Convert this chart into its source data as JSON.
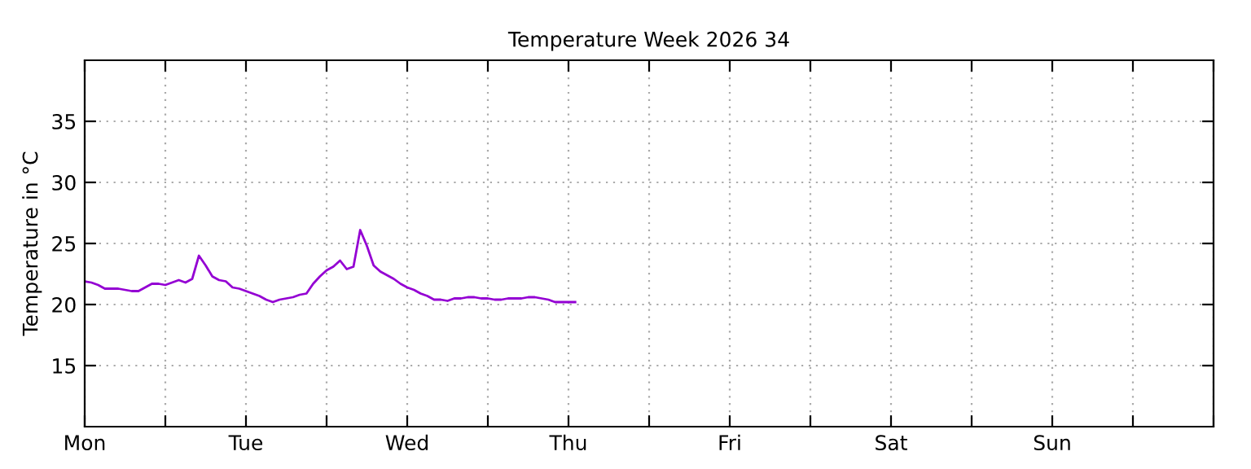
{
  "chart_data": {
    "type": "line",
    "title": "Temperature Week 2026 34",
    "ylabel": "Temperature in °C",
    "categories": [
      "Mon",
      null,
      null,
      null,
      null,
      null,
      null,
      null,
      null,
      null,
      null,
      null,
      null,
      null,
      null,
      null,
      null,
      null,
      null,
      null,
      null,
      null,
      null,
      null,
      "Tue",
      null,
      null,
      null,
      null,
      null,
      null,
      null,
      null,
      null,
      null,
      null,
      null,
      null,
      null,
      null,
      null,
      null,
      null,
      null,
      null,
      null,
      null,
      null,
      "Wed",
      null,
      null,
      null,
      null,
      null,
      null,
      null,
      null,
      null,
      null,
      null,
      null,
      null,
      null,
      null,
      null,
      null,
      null,
      null,
      null,
      null,
      null,
      null,
      "Thu",
      null,
      null,
      null,
      null,
      null,
      null,
      null,
      null,
      null,
      null,
      null,
      null,
      null,
      null,
      null,
      null,
      null,
      null,
      null,
      null,
      null,
      null,
      null,
      "Fri",
      null,
      null,
      null,
      null,
      null,
      null,
      null,
      null,
      null,
      null,
      null,
      null,
      null,
      null,
      null,
      null,
      null,
      null,
      null,
      null,
      null,
      null,
      null,
      "Sat",
      null,
      null,
      null,
      null,
      null,
      null,
      null,
      null,
      null,
      null,
      null,
      null,
      null,
      null,
      null,
      null,
      null,
      null,
      null,
      null,
      null,
      null,
      null,
      "Sun",
      null,
      null,
      null,
      null,
      null,
      null,
      null,
      null,
      null,
      null,
      null,
      null,
      null,
      null,
      null,
      null,
      null,
      null,
      null,
      null,
      null,
      null,
      null,
      null
    ],
    "ylim": [
      10,
      40
    ],
    "yticks": [
      15,
      20,
      25,
      30,
      35
    ],
    "grid": true,
    "marker": "none",
    "line_style": "solid",
    "series": [
      {
        "color": "#9400d3",
        "values": [
          21.9,
          21.8,
          21.6,
          21.3,
          21.3,
          21.3,
          21.2,
          21.1,
          21.1,
          21.4,
          21.7,
          21.7,
          21.6,
          21.8,
          22.0,
          21.8,
          22.1,
          24.0,
          23.2,
          22.3,
          22.0,
          21.9,
          21.4,
          21.3,
          21.1,
          20.9,
          20.7,
          20.4,
          20.2,
          20.4,
          20.5,
          20.6,
          20.8,
          20.9,
          21.7,
          22.3,
          22.8,
          23.1,
          23.6,
          22.9,
          23.1,
          26.1,
          24.8,
          23.2,
          22.7,
          22.4,
          22.1,
          21.7,
          21.4,
          21.2,
          20.9,
          20.7,
          20.4,
          20.4,
          20.3,
          20.5,
          20.5,
          20.6,
          20.6,
          20.5,
          20.5,
          20.4,
          20.4,
          20.5,
          20.5,
          20.5,
          20.6,
          20.6,
          20.5,
          20.4,
          20.2,
          20.2,
          20.2,
          20.2,
          null,
          null,
          null,
          null,
          null,
          null,
          null,
          null,
          null,
          null,
          null,
          null,
          null,
          null,
          null,
          null,
          null,
          null,
          null,
          null,
          null,
          null,
          null,
          null,
          null,
          null,
          null,
          null,
          null,
          null,
          null,
          null,
          null,
          null,
          null,
          null,
          null,
          null,
          null,
          null,
          null,
          null,
          null,
          null,
          null,
          null,
          null,
          null,
          null,
          null,
          null,
          null,
          null,
          null,
          null,
          null,
          null,
          null,
          null,
          null,
          null,
          null,
          null,
          null,
          null,
          null,
          null,
          null,
          null,
          null,
          null,
          null,
          null,
          null,
          null,
          null,
          null,
          null,
          null,
          null,
          null,
          null,
          null,
          null,
          null,
          null,
          null,
          null,
          null,
          null,
          null,
          null,
          null,
          null,
          null
        ]
      }
    ]
  }
}
